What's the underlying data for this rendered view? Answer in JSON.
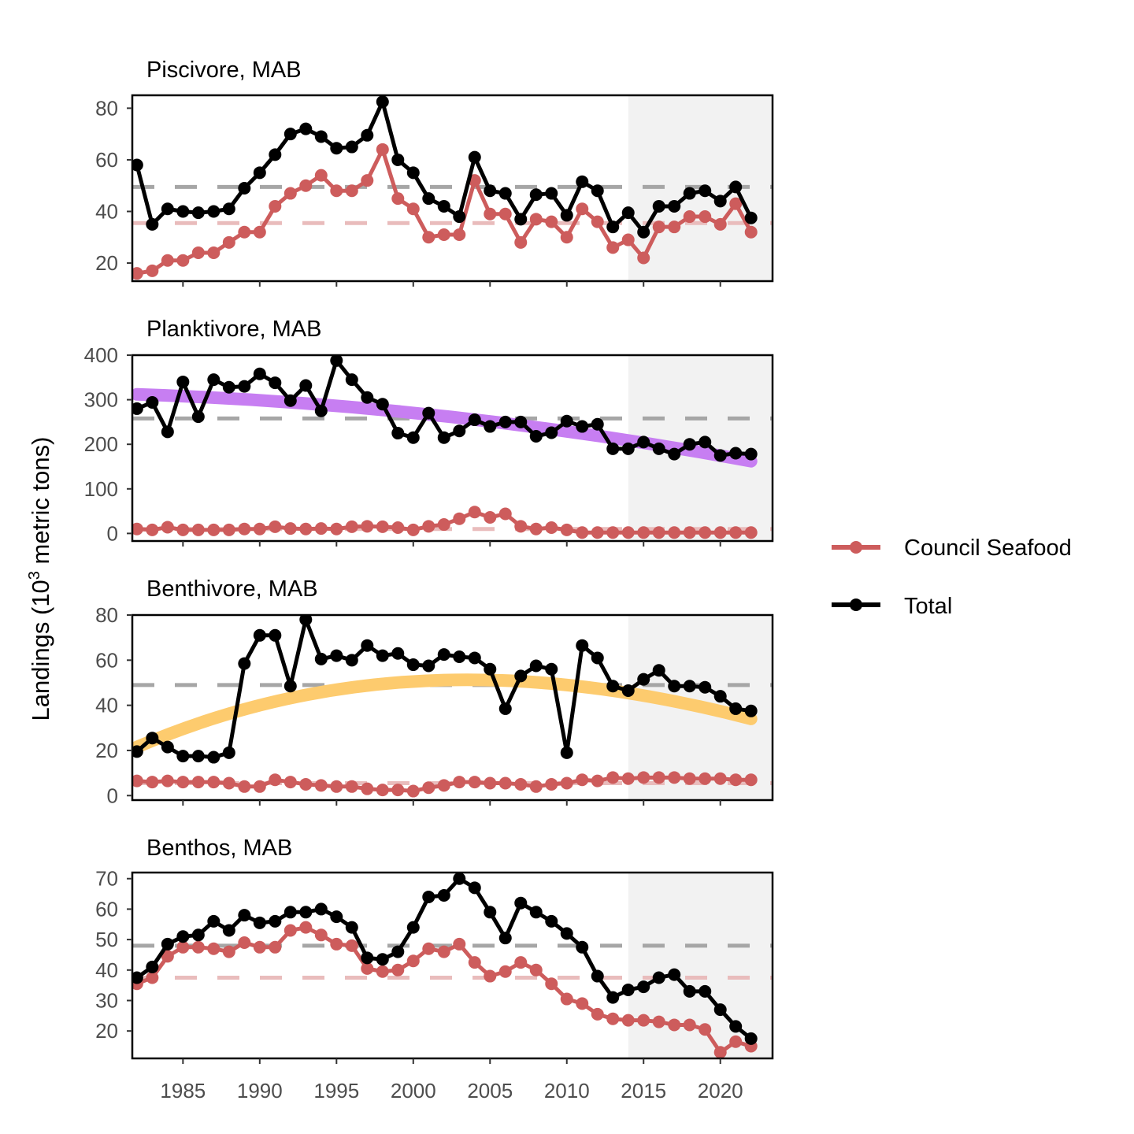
{
  "figure": {
    "ylabel_main": "Landings (10",
    "ylabel_sup": "3",
    "ylabel_tail": " metric tons)",
    "shade_from": 2014,
    "shade_color": "#f2f2f2",
    "legend": {
      "council": "Council Seafood",
      "total": "Total"
    }
  },
  "chart_data": [
    {
      "type": "line",
      "title": "Piscivore, MAB",
      "x": [
        1982,
        1983,
        1984,
        1985,
        1986,
        1987,
        1988,
        1989,
        1990,
        1991,
        1992,
        1993,
        1994,
        1995,
        1996,
        1997,
        1998,
        1999,
        2000,
        2001,
        2002,
        2003,
        2004,
        2005,
        2006,
        2007,
        2008,
        2009,
        2010,
        2011,
        2012,
        2013,
        2014,
        2015,
        2016,
        2017,
        2018,
        2019,
        2020,
        2021,
        2022
      ],
      "ylim": [
        13,
        85
      ],
      "yticks": [
        20,
        40,
        60,
        80
      ],
      "series": [
        {
          "name": "Council Seafood",
          "color": "#cd5c5c",
          "values": [
            16,
            17,
            21,
            21,
            24,
            24,
            28,
            32,
            32,
            42,
            47,
            50,
            54,
            48,
            48,
            52,
            64,
            45,
            41,
            30,
            31,
            31,
            52,
            39,
            39,
            28,
            37,
            36,
            30,
            41,
            36,
            26,
            29,
            22,
            34,
            34,
            38,
            38,
            35,
            43,
            32
          ],
          "mean": 35.5
        },
        {
          "name": "Total",
          "color": "#000000",
          "values": [
            58,
            35,
            41,
            40,
            39.5,
            40,
            41,
            49,
            55,
            62,
            70,
            72,
            69,
            64.5,
            65,
            69.5,
            82.5,
            60,
            55,
            45,
            42,
            38,
            61,
            48,
            47,
            37,
            46.5,
            47,
            38.5,
            51.5,
            48,
            34,
            39.5,
            32,
            42,
            42,
            47,
            48,
            44,
            49.5,
            37.5
          ],
          "mean": 49.5
        }
      ]
    },
    {
      "type": "line",
      "title": "Planktivore, MAB",
      "x": [
        1982,
        1983,
        1984,
        1985,
        1986,
        1987,
        1988,
        1989,
        1990,
        1991,
        1992,
        1993,
        1994,
        1995,
        1996,
        1997,
        1998,
        1999,
        2000,
        2001,
        2002,
        2003,
        2004,
        2005,
        2006,
        2007,
        2008,
        2009,
        2010,
        2011,
        2012,
        2013,
        2014,
        2015,
        2016,
        2017,
        2018,
        2019,
        2020,
        2021,
        2022
      ],
      "ylim": [
        -17,
        400
      ],
      "yticks": [
        0,
        100,
        200,
        300,
        400
      ],
      "series": [
        {
          "name": "Council Seafood",
          "color": "#cd5c5c",
          "values": [
            10,
            8,
            14,
            8,
            8,
            8,
            8,
            10,
            10,
            15,
            11,
            10,
            11,
            10,
            15,
            16,
            15,
            13,
            8,
            16,
            20,
            33,
            48,
            36,
            44,
            16,
            10,
            13,
            8,
            2,
            2,
            2,
            2,
            2,
            2,
            2,
            2,
            2,
            2,
            2,
            2
          ],
          "mean": 10
        },
        {
          "name": "Total",
          "color": "#000000",
          "values": [
            280,
            294,
            228,
            340,
            262,
            345,
            328,
            330,
            358,
            338,
            298,
            332,
            275,
            388,
            345,
            305,
            290,
            225,
            215,
            270,
            215,
            230,
            255,
            240,
            250,
            250,
            218,
            226,
            252,
            240,
            245,
            190,
            190,
            205,
            190,
            178,
            200,
            205,
            175,
            180,
            178
          ],
          "mean": 258,
          "trend": {
            "color": "#c77ef2",
            "values": [
              312,
              297,
              247,
              162
            ]
          }
        }
      ]
    },
    {
      "type": "line",
      "title": "Benthivore, MAB",
      "x": [
        1982,
        1983,
        1984,
        1985,
        1986,
        1987,
        1988,
        1989,
        1990,
        1991,
        1992,
        1993,
        1994,
        1995,
        1996,
        1997,
        1998,
        1999,
        2000,
        2001,
        2002,
        2003,
        2004,
        2005,
        2006,
        2007,
        2008,
        2009,
        2010,
        2011,
        2012,
        2013,
        2014,
        2015,
        2016,
        2017,
        2018,
        2019,
        2020,
        2021,
        2022
      ],
      "ylim": [
        -2,
        80
      ],
      "yticks": [
        0,
        20,
        40,
        60,
        80
      ],
      "series": [
        {
          "name": "Council Seafood",
          "color": "#cd5c5c",
          "values": [
            6.5,
            6,
            6.5,
            6,
            6,
            6,
            5.5,
            4,
            4,
            7,
            6,
            5,
            4.5,
            4,
            4,
            3,
            2.5,
            2.5,
            2,
            3.5,
            4.5,
            6,
            6,
            5.5,
            5.5,
            5,
            4,
            5,
            5.5,
            7,
            6.5,
            8,
            7.5,
            8,
            8,
            8,
            7.5,
            7.5,
            7.5,
            7,
            7
          ],
          "mean": 5.5
        },
        {
          "name": "Total",
          "color": "#000000",
          "values": [
            19.5,
            25.5,
            21.5,
            17.5,
            17.5,
            17,
            19,
            58.5,
            71,
            71,
            48.5,
            78,
            60.5,
            62,
            60,
            66.5,
            62,
            63,
            58,
            57.5,
            62.5,
            61.5,
            61,
            56,
            38.5,
            53,
            57.5,
            56,
            19,
            66.5,
            61,
            48.5,
            46.5,
            51.5,
            55.5,
            48.5,
            48.5,
            48,
            44,
            38.5,
            37.5
          ],
          "mean": 49,
          "trend": {
            "color": "#fdcb6e",
            "values": [
              21.5,
              60.5,
              57.5,
              34
            ]
          }
        }
      ]
    },
    {
      "type": "line",
      "title": "Benthos, MAB",
      "x": [
        1982,
        1983,
        1984,
        1985,
        1986,
        1987,
        1988,
        1989,
        1990,
        1991,
        1992,
        1993,
        1994,
        1995,
        1996,
        1997,
        1998,
        1999,
        2000,
        2001,
        2002,
        2003,
        2004,
        2005,
        2006,
        2007,
        2008,
        2009,
        2010,
        2011,
        2012,
        2013,
        2014,
        2015,
        2016,
        2017,
        2018,
        2019,
        2020,
        2021,
        2022
      ],
      "ylim": [
        11,
        72
      ],
      "yticks": [
        20,
        30,
        40,
        50,
        60,
        70
      ],
      "series": [
        {
          "name": "Council Seafood",
          "color": "#cd5c5c",
          "values": [
            35.5,
            37.5,
            44.5,
            47.5,
            47.5,
            47,
            46,
            49,
            47.5,
            47.5,
            53,
            54,
            51.5,
            48.5,
            48,
            40.5,
            39.5,
            40,
            43,
            47,
            46,
            48.5,
            42.5,
            38,
            39.5,
            42.5,
            40,
            35.5,
            30.5,
            29,
            25.5,
            24,
            23.5,
            23.5,
            23,
            22,
            22,
            20.5,
            13,
            16.5,
            15
          ],
          "mean": 37.5
        },
        {
          "name": "Total",
          "color": "#000000",
          "values": [
            37.5,
            41,
            48.5,
            51,
            51.5,
            56,
            53,
            58,
            55.5,
            56,
            59,
            59,
            60,
            57.5,
            54,
            44,
            43.5,
            46,
            54,
            64,
            64.5,
            70,
            67,
            59,
            50.5,
            62,
            59,
            56,
            52,
            47.5,
            38,
            31,
            33.5,
            34.5,
            37.5,
            38.5,
            33,
            33,
            27,
            21.5,
            17.5
          ],
          "mean": 48
        }
      ]
    }
  ],
  "x_axis": {
    "ticks": [
      1985,
      1990,
      1995,
      2000,
      2005,
      2010,
      2015,
      2020
    ],
    "xlim": [
      1981.7,
      2023.4
    ]
  }
}
